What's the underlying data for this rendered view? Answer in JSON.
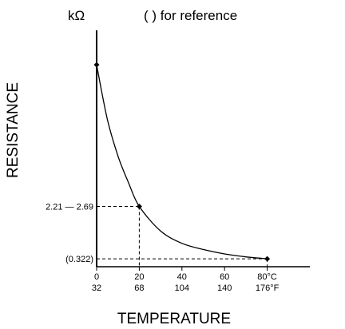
{
  "chart_data": {
    "type": "line",
    "title": "(      ) for reference",
    "unit_label": "kΩ",
    "xlabel": "TEMPERATURE",
    "ylabel": "RESISTANCE",
    "grid": false,
    "x_celsius": [
      0,
      20,
      40,
      60,
      80
    ],
    "x_celsius_labels": [
      "0",
      "20",
      "40",
      "60",
      "80"
    ],
    "x_celsius_unit": "°C",
    "x_fahrenheit_labels": [
      "32",
      "68",
      "104",
      "140",
      "176"
    ],
    "x_fahrenheit_unit": "°F",
    "y_tick_labels": [
      "2.21 — 2.69",
      "(0.322)"
    ],
    "series": [
      {
        "points": [
          {
            "x": 0,
            "y": 8.2
          },
          {
            "x": 5,
            "y": 6.0
          },
          {
            "x": 10,
            "y": 4.5
          },
          {
            "x": 15,
            "y": 3.4
          },
          {
            "x": 20,
            "y": 2.45
          },
          {
            "x": 30,
            "y": 1.45
          },
          {
            "x": 40,
            "y": 0.95
          },
          {
            "x": 50,
            "y": 0.7
          },
          {
            "x": 60,
            "y": 0.52
          },
          {
            "x": 70,
            "y": 0.4
          },
          {
            "x": 80,
            "y": 0.322
          }
        ],
        "markers": [
          0,
          20,
          80
        ]
      }
    ],
    "reference_lines": [
      {
        "x": 20,
        "y": 2.45
      },
      {
        "x": 80,
        "y": 0.322
      }
    ],
    "xlim": [
      0,
      100
    ],
    "ylim": [
      0,
      9.6
    ],
    "color": "#000000"
  }
}
